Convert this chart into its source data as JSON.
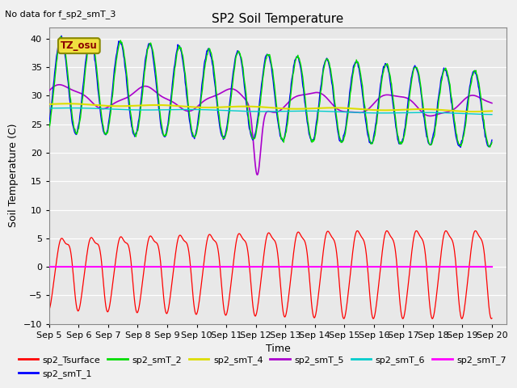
{
  "title": "SP2 Soil Temperature",
  "subtitle": "No data for f_sp2_smT_3",
  "xlabel": "Time",
  "ylabel": "Soil Temperature (C)",
  "ylim": [
    -10,
    42
  ],
  "xlim": [
    0,
    15.5
  ],
  "x_tick_labels": [
    "Sep 5",
    "Sep 6",
    "Sep 7",
    "Sep 8",
    "Sep 9",
    "Sep 10",
    "Sep 11",
    "Sep 12",
    "Sep 13",
    "Sep 14",
    "Sep 15",
    "Sep 16",
    "Sep 17",
    "Sep 18",
    "Sep 19",
    "Sep 20"
  ],
  "bg_color": "#e8e8e8",
  "grid_color": "#ffffff",
  "tz_label": "TZ_osu",
  "series_colors": {
    "sp2_Tsurface": "#ff0000",
    "sp2_smT_1": "#0000ff",
    "sp2_smT_2": "#00dd00",
    "sp2_smT_4": "#dddd00",
    "sp2_smT_5": "#aa00cc",
    "sp2_smT_6": "#00cccc",
    "sp2_smT_7": "#ff00ff"
  },
  "fig_facecolor": "#f0f0f0"
}
